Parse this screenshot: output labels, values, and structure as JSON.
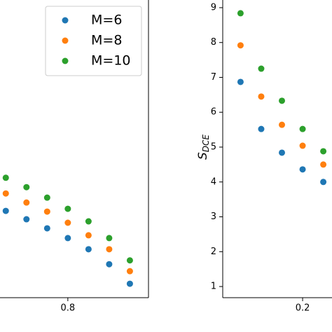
{
  "chart_data": [
    {
      "type": "scatter",
      "xlim": [
        0.636,
        0.995
      ],
      "ylim": [
        0.68,
        9.22
      ],
      "xticks": [
        0.8
      ],
      "yticks": [],
      "legend": "upper right",
      "series": [
        {
          "name": "M=6",
          "color": "#1f77b4",
          "x": [
            0.65,
            0.7,
            0.75,
            0.8,
            0.85,
            0.9,
            0.95
          ],
          "values": [
            3.17,
            2.93,
            2.67,
            2.39,
            2.07,
            1.64,
            1.08
          ]
        },
        {
          "name": "M=8",
          "color": "#ff7f0e",
          "x": [
            0.65,
            0.7,
            0.75,
            0.8,
            0.85,
            0.9,
            0.95
          ],
          "values": [
            3.67,
            3.41,
            3.15,
            2.83,
            2.47,
            2.07,
            1.44
          ]
        },
        {
          "name": "M=10",
          "color": "#2ca02c",
          "x": [
            0.65,
            0.7,
            0.75,
            0.8,
            0.85,
            0.9,
            0.95
          ],
          "values": [
            4.12,
            3.85,
            3.55,
            3.23,
            2.87,
            2.39,
            1.75
          ]
        }
      ]
    },
    {
      "type": "scatter",
      "ylabel": "S",
      "ylabel_sub": "DCE",
      "xlim": [
        0.007,
        0.271
      ],
      "ylim": [
        0.68,
        9.22
      ],
      "xticks": [
        0.2
      ],
      "yticks": [
        1,
        2,
        3,
        4,
        5,
        6,
        7,
        8,
        9
      ],
      "series": [
        {
          "color": "#1f77b4",
          "x": [
            0.05,
            0.1,
            0.15,
            0.2,
            0.25
          ],
          "values": [
            6.87,
            5.52,
            4.84,
            4.36,
            4.0
          ]
        },
        {
          "color": "#ff7f0e",
          "x": [
            0.05,
            0.1,
            0.15,
            0.2,
            0.25
          ],
          "values": [
            7.92,
            6.45,
            5.64,
            5.04,
            4.5
          ]
        },
        {
          "color": "#2ca02c",
          "x": [
            0.05,
            0.1,
            0.15,
            0.2,
            0.25
          ],
          "values": [
            8.84,
            7.25,
            6.33,
            5.52,
            4.88
          ]
        }
      ]
    }
  ]
}
